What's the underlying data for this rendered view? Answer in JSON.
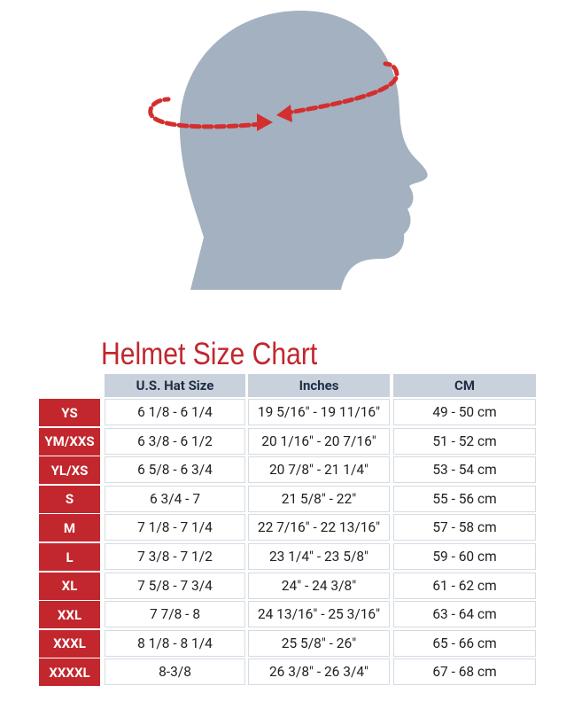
{
  "title": "Helmet Size Chart",
  "colors": {
    "accent": "#c1272d",
    "header_bg": "#c9d2dc",
    "silhouette": "#a3b1c0"
  },
  "illustration": "head-measurement-icon",
  "headers": [
    "U.S. Hat Size",
    "Inches",
    "CM"
  ],
  "rows": [
    {
      "size": "YS",
      "hat": "6 1/8 - 6 1/4",
      "inches": "19 5/16\" - 19 11/16\"",
      "cm": "49 - 50 cm"
    },
    {
      "size": "YM/XXS",
      "hat": "6 3/8 - 6 1/2",
      "inches": "20 1/16\" - 20 7/16\"",
      "cm": "51 - 52 cm"
    },
    {
      "size": "YL/XS",
      "hat": "6 5/8 - 6 3/4",
      "inches": "20 7/8\" - 21 1/4\"",
      "cm": "53 - 54 cm"
    },
    {
      "size": "S",
      "hat": "6 3/4 - 7",
      "inches": "21 5/8\" - 22\"",
      "cm": "55 - 56 cm"
    },
    {
      "size": "M",
      "hat": "7 1/8 - 7 1/4",
      "inches": "22 7/16\" - 22 13/16\"",
      "cm": "57 - 58 cm"
    },
    {
      "size": "L",
      "hat": "7 3/8 - 7 1/2",
      "inches": "23 1/4\" - 23 5/8\"",
      "cm": "59 - 60 cm"
    },
    {
      "size": "XL",
      "hat": "7 5/8 - 7 3/4",
      "inches": "24\" - 24 3/8\"",
      "cm": "61 - 62 cm"
    },
    {
      "size": "XXL",
      "hat": "7 7/8 - 8",
      "inches": "24 13/16\" - 25 3/16\"",
      "cm": "63 - 64 cm"
    },
    {
      "size": "XXXL",
      "hat": "8 1/8 - 8 1/4",
      "inches": "25 5/8\" - 26\"",
      "cm": "65 - 66 cm"
    },
    {
      "size": "XXXXL",
      "hat": "8-3/8",
      "inches": "26 3/8\" - 26 3/4\"",
      "cm": "67 - 68 cm"
    }
  ]
}
